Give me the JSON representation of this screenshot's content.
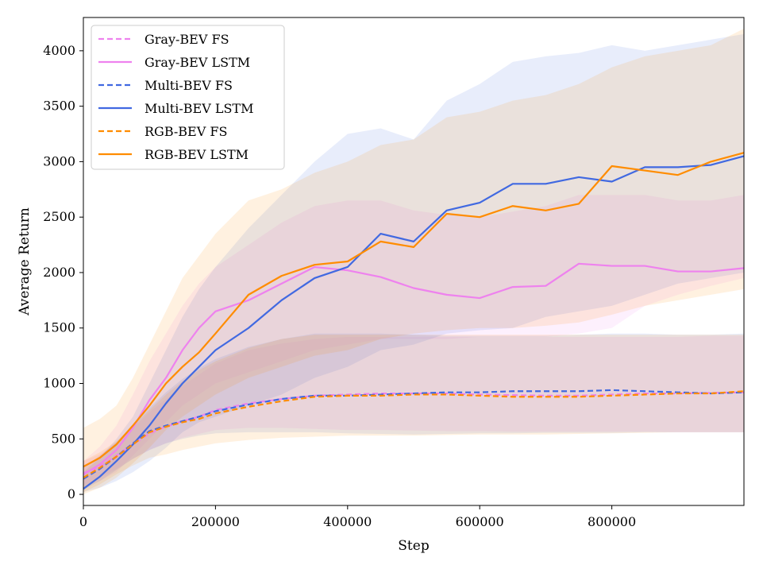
{
  "chart_data": {
    "type": "line",
    "title": "",
    "xlabel": "Step",
    "ylabel": "Average Return",
    "xlim": [
      0,
      1000000
    ],
    "ylim": [
      -100,
      4300
    ],
    "xticks": [
      0,
      200000,
      400000,
      600000,
      800000
    ],
    "xtick_labels": [
      "0",
      "200000",
      "400000",
      "600000",
      "800000"
    ],
    "yticks": [
      0,
      500,
      1000,
      1500,
      2000,
      2500,
      3000,
      3500,
      4000
    ],
    "ytick_labels": [
      "0",
      "500",
      "1000",
      "1500",
      "2000",
      "2500",
      "3000",
      "3500",
      "4000"
    ],
    "grid": false,
    "legend_position": "top-left",
    "x": [
      0,
      25000,
      50000,
      75000,
      100000,
      125000,
      150000,
      175000,
      200000,
      250000,
      300000,
      350000,
      400000,
      450000,
      500000,
      550000,
      600000,
      650000,
      700000,
      750000,
      800000,
      850000,
      900000,
      950000,
      1000000
    ],
    "series": [
      {
        "name": "Gray-BEV FS",
        "color": "#ee82ee",
        "dash": true,
        "values": [
          190,
          250,
          350,
          450,
          550,
          610,
          660,
          700,
          760,
          820,
          860,
          890,
          900,
          910,
          910,
          910,
          900,
          895,
          890,
          890,
          900,
          910,
          910,
          915,
          920
        ],
        "lower": [
          80,
          150,
          230,
          320,
          400,
          460,
          510,
          545,
          580,
          600,
          600,
          590,
          580,
          580,
          575,
          570,
          570,
          565,
          565,
          565,
          565,
          565,
          560,
          560,
          560
        ],
        "upper": [
          300,
          360,
          470,
          600,
          740,
          860,
          980,
          1080,
          1180,
          1300,
          1360,
          1400,
          1420,
          1420,
          1420,
          1420,
          1420,
          1420,
          1420,
          1420,
          1420,
          1420,
          1420,
          1430,
          1430
        ]
      },
      {
        "name": "Gray-BEV LSTM",
        "color": "#ee82ee",
        "dash": false,
        "values": [
          180,
          270,
          400,
          600,
          850,
          1050,
          1300,
          1500,
          1650,
          1750,
          1900,
          2050,
          2020,
          1960,
          1860,
          1800,
          1770,
          1870,
          1880,
          2080,
          2060,
          2060,
          2010,
          2010,
          2040
        ],
        "lower": [
          60,
          120,
          200,
          350,
          500,
          650,
          800,
          900,
          1000,
          1100,
          1200,
          1300,
          1350,
          1400,
          1400,
          1400,
          1420,
          1420,
          1420,
          1450,
          1500,
          1700,
          1800,
          1880,
          1950
        ],
        "upper": [
          300,
          430,
          620,
          900,
          1200,
          1450,
          1700,
          1900,
          2050,
          2250,
          2450,
          2600,
          2650,
          2650,
          2560,
          2520,
          2500,
          2550,
          2600,
          2700,
          2700,
          2700,
          2650,
          2650,
          2700
        ]
      },
      {
        "name": "Multi-BEV FS",
        "color": "#4169e1",
        "dash": true,
        "values": [
          140,
          230,
          340,
          460,
          570,
          620,
          660,
          700,
          750,
          810,
          860,
          890,
          890,
          900,
          910,
          920,
          920,
          930,
          930,
          930,
          940,
          930,
          920,
          910,
          920
        ],
        "lower": [
          40,
          120,
          220,
          320,
          400,
          460,
          500,
          530,
          550,
          560,
          560,
          560,
          550,
          545,
          540,
          545,
          550,
          550,
          555,
          555,
          555,
          560,
          560,
          560,
          560
        ],
        "upper": [
          240,
          350,
          470,
          620,
          780,
          920,
          1040,
          1140,
          1220,
          1330,
          1400,
          1450,
          1450,
          1450,
          1440,
          1430,
          1430,
          1430,
          1430,
          1440,
          1450,
          1450,
          1440,
          1440,
          1450
        ]
      },
      {
        "name": "Multi-BEV LSTM",
        "color": "#4169e1",
        "dash": false,
        "values": [
          50,
          160,
          300,
          450,
          620,
          820,
          1000,
          1150,
          1300,
          1500,
          1750,
          1950,
          2050,
          2350,
          2280,
          2560,
          2630,
          2800,
          2800,
          2860,
          2820,
          2950,
          2950,
          2970,
          3050
        ],
        "lower": [
          20,
          60,
          120,
          200,
          300,
          420,
          560,
          650,
          700,
          800,
          900,
          1050,
          1150,
          1300,
          1350,
          1450,
          1480,
          1500,
          1600,
          1650,
          1700,
          1800,
          1900,
          1950,
          2000
        ],
        "upper": [
          200,
          330,
          500,
          700,
          1000,
          1300,
          1600,
          1850,
          2050,
          2400,
          2700,
          3000,
          3250,
          3300,
          3200,
          3550,
          3700,
          3900,
          3950,
          3980,
          4050,
          4000,
          4050,
          4100,
          4150
        ]
      },
      {
        "name": "RGB-BEV FS",
        "color": "#ff8c00",
        "dash": true,
        "values": [
          150,
          240,
          340,
          450,
          560,
          610,
          650,
          680,
          730,
          790,
          840,
          880,
          890,
          890,
          900,
          900,
          890,
          880,
          880,
          880,
          890,
          900,
          910,
          910,
          930
        ],
        "lower": [
          20,
          90,
          180,
          260,
          330,
          360,
          400,
          430,
          460,
          490,
          510,
          520,
          530,
          530,
          530,
          535,
          540,
          540,
          540,
          545,
          550,
          555,
          560,
          560,
          560
        ],
        "upper": [
          300,
          380,
          480,
          620,
          760,
          900,
          1020,
          1120,
          1200,
          1320,
          1400,
          1440,
          1440,
          1440,
          1440,
          1440,
          1440,
          1440,
          1440,
          1440,
          1440,
          1440,
          1440,
          1440,
          1440
        ]
      },
      {
        "name": "RGB-BEV LSTM",
        "color": "#ff8c00",
        "dash": false,
        "values": [
          250,
          330,
          450,
          620,
          800,
          1000,
          1150,
          1280,
          1450,
          1800,
          1970,
          2070,
          2100,
          2280,
          2230,
          2530,
          2500,
          2600,
          2560,
          2620,
          2960,
          2920,
          2880,
          3000,
          3080
        ],
        "lower": [
          0,
          60,
          150,
          280,
          420,
          580,
          700,
          800,
          900,
          1050,
          1150,
          1250,
          1300,
          1400,
          1450,
          1480,
          1500,
          1500,
          1520,
          1550,
          1620,
          1700,
          1750,
          1800,
          1850
        ],
        "upper": [
          600,
          680,
          800,
          1050,
          1350,
          1650,
          1950,
          2150,
          2350,
          2650,
          2750,
          2900,
          3000,
          3150,
          3200,
          3400,
          3450,
          3550,
          3600,
          3700,
          3850,
          3950,
          4000,
          4050,
          4200
        ]
      }
    ]
  }
}
